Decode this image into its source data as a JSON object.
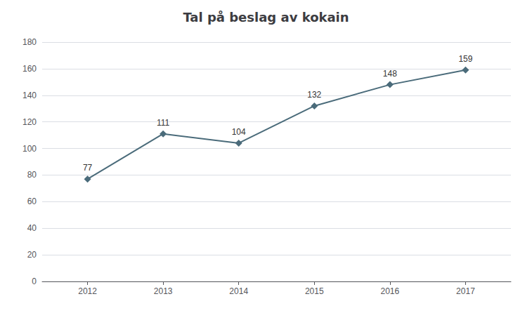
{
  "chart_data": {
    "type": "line",
    "title": "Tal på beslag av kokain",
    "x": [
      2012,
      2013,
      2014,
      2015,
      2016,
      2017
    ],
    "values": [
      77,
      111,
      104,
      132,
      148,
      159
    ],
    "color": "#4a6b7a",
    "marker": "diamond",
    "data_labels": true,
    "xlim": [
      2011.4,
      2017.6
    ],
    "xticks": [
      2012,
      2013,
      2014,
      2015,
      2016,
      2017
    ],
    "ylim": [
      0,
      180
    ],
    "yticks": [
      0,
      20,
      40,
      60,
      80,
      100,
      120,
      140,
      160,
      180
    ],
    "grid": true
  }
}
